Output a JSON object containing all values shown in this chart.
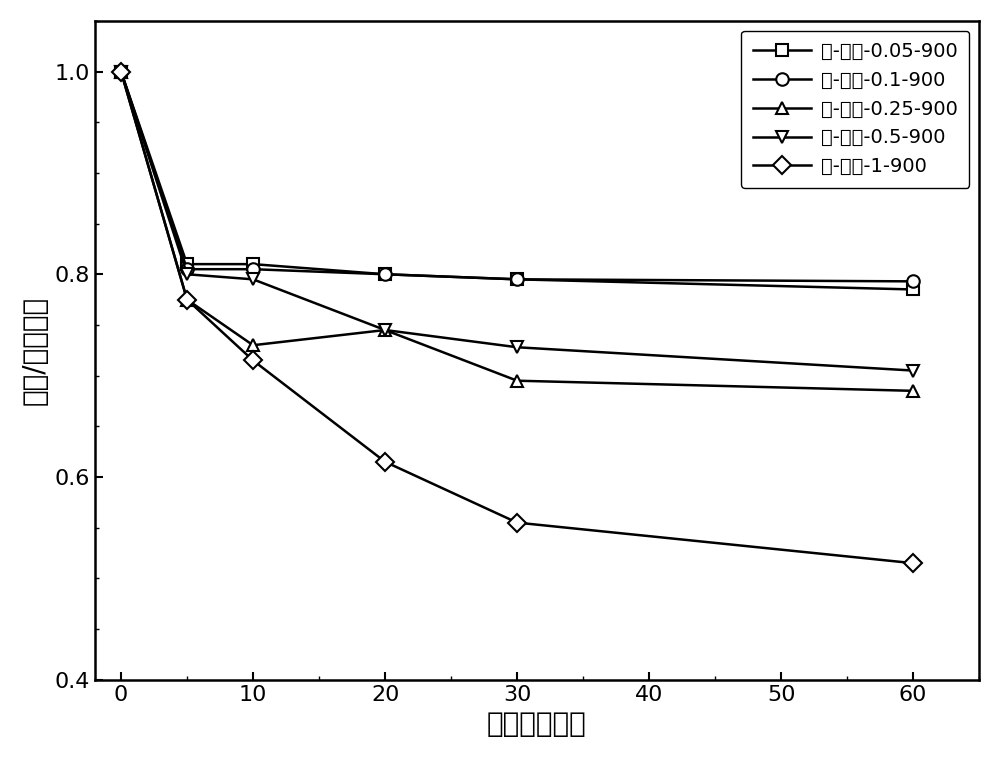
{
  "x_values": [
    0,
    5,
    10,
    20,
    30,
    60
  ],
  "series": [
    {
      "label": "铁-氮碳-0.05-900",
      "marker": "s",
      "y": [
        1.0,
        0.81,
        0.81,
        0.8,
        0.795,
        0.785
      ]
    },
    {
      "label": "铁-氮碳-0.1-900",
      "marker": "o",
      "y": [
        1.0,
        0.805,
        0.805,
        0.8,
        0.795,
        0.793
      ]
    },
    {
      "label": "铁-氮碳-0.25-900",
      "marker": "^",
      "y": [
        1.0,
        0.775,
        0.73,
        0.745,
        0.695,
        0.685
      ]
    },
    {
      "label": "铁-氮碳-0.5-900",
      "marker": "v",
      "y": [
        1.0,
        0.8,
        0.795,
        0.745,
        0.728,
        0.705
      ]
    },
    {
      "label": "铁-氮碳-1-900",
      "marker": "D",
      "y": [
        1.0,
        0.775,
        0.715,
        0.615,
        0.555,
        0.515
      ]
    }
  ],
  "xlabel": "时间（分钟）",
  "ylabel": "浓度/初始浓度",
  "ylim": [
    0.4,
    1.05
  ],
  "xlim": [
    -2,
    65
  ],
  "yticks": [
    0.4,
    0.6,
    0.8,
    1.0
  ],
  "xticks": [
    0,
    10,
    20,
    30,
    40,
    50,
    60
  ],
  "line_color": "#000000",
  "marker_facecolor": "white",
  "marker_size": 9,
  "line_width": 1.8,
  "xlabel_fontsize": 20,
  "ylabel_fontsize": 20,
  "tick_fontsize": 16,
  "legend_fontsize": 14
}
